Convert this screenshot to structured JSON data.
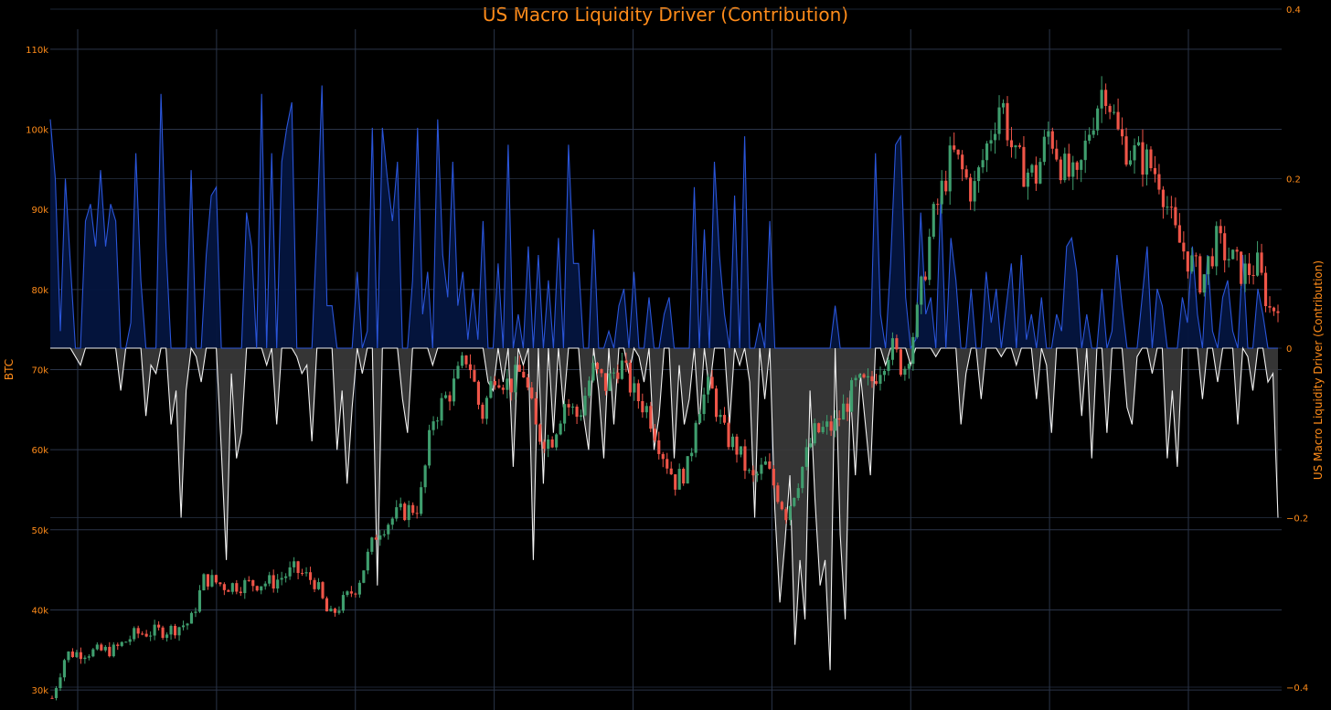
{
  "colors": {
    "background": "#000000",
    "accent": "#ff8c1a",
    "grid": "#2a3448",
    "positive_line": "#2a55d9",
    "positive_fill": "#04153f",
    "negative_line": "#f2f2f2",
    "negative_fill": "#3b3b3b",
    "candle_up": "#3f9e6e",
    "candle_down": "#ef5548"
  },
  "chart_data": {
    "type": "line",
    "title": "US Macro Liquidity Driver (Contribution)",
    "y_left": {
      "label": "BTC",
      "range": [
        27500,
        112500
      ],
      "ticks": [
        30000,
        40000,
        50000,
        60000,
        70000,
        80000,
        90000,
        100000,
        110000
      ],
      "tick_labels": [
        "30k",
        "40k",
        "50k",
        "60k",
        "70k",
        "80k",
        "90k",
        "100k",
        "110k"
      ]
    },
    "y_right": {
      "label": "US Macro Liquidity Driver (Contribution)",
      "range": [
        -0.4,
        0.4
      ],
      "ticks": [
        -0.4,
        -0.2,
        0,
        0.2,
        0.4
      ],
      "tick_labels": [
        "−0.4",
        "−0.2",
        "0",
        "0.2",
        "0.4"
      ]
    },
    "x_grid_count": 9,
    "grid": true,
    "legend": "none",
    "btc_keypoints": [
      [
        0,
        29000
      ],
      [
        2,
        34500
      ],
      [
        9,
        35000
      ],
      [
        12,
        37000
      ],
      [
        17,
        37500
      ],
      [
        20,
        38500
      ],
      [
        22,
        44000
      ],
      [
        25,
        43000
      ],
      [
        32,
        43500
      ],
      [
        35,
        45000
      ],
      [
        38,
        43500
      ],
      [
        40,
        39000
      ],
      [
        44,
        43000
      ],
      [
        47,
        50000
      ],
      [
        50,
        52000
      ],
      [
        53,
        53000
      ],
      [
        55,
        64000
      ],
      [
        58,
        68000
      ],
      [
        60,
        72000
      ],
      [
        62,
        64000
      ],
      [
        64,
        70000
      ],
      [
        66,
        68000
      ],
      [
        68,
        70000
      ],
      [
        70,
        62000
      ],
      [
        72,
        61000
      ],
      [
        74,
        66000
      ],
      [
        76,
        64000
      ],
      [
        78,
        70000
      ],
      [
        80,
        68000
      ],
      [
        82,
        71000
      ],
      [
        84,
        67000
      ],
      [
        86,
        65000
      ],
      [
        88,
        60000
      ],
      [
        90,
        56000
      ],
      [
        92,
        58000
      ],
      [
        93,
        65000
      ],
      [
        95,
        68000
      ],
      [
        97,
        62000
      ],
      [
        99,
        60000
      ],
      [
        101,
        56000
      ],
      [
        103,
        58000
      ],
      [
        106,
        52000
      ],
      [
        108,
        57000
      ],
      [
        110,
        62000
      ],
      [
        113,
        63000
      ],
      [
        116,
        68000
      ],
      [
        118,
        68000
      ],
      [
        121,
        73000
      ],
      [
        123,
        70000
      ],
      [
        125,
        77000
      ],
      [
        127,
        88000
      ],
      [
        130,
        97000
      ],
      [
        133,
        92000
      ],
      [
        135,
        98000
      ],
      [
        137,
        104000
      ],
      [
        139,
        96000
      ],
      [
        142,
        94000
      ],
      [
        144,
        100000
      ],
      [
        146,
        95000
      ],
      [
        148,
        93000
      ],
      [
        150,
        101000
      ],
      [
        152,
        106000
      ],
      [
        154,
        99000
      ],
      [
        156,
        97000
      ],
      [
        158,
        96000
      ],
      [
        160,
        94000
      ],
      [
        162,
        87000
      ],
      [
        164,
        84000
      ],
      [
        166,
        81000
      ],
      [
        168,
        86000
      ],
      [
        170,
        84000
      ],
      [
        172,
        82000
      ],
      [
        174,
        83000
      ],
      [
        176,
        77000
      ],
      [
        177,
        79000
      ]
    ],
    "macro_series": [
      0.27,
      0.2,
      0.02,
      0.2,
      0.1,
      -0.01,
      -0.02,
      0.15,
      0.17,
      0.12,
      0.21,
      0.12,
      0.17,
      0.15,
      -0.05,
      0.0,
      0.03,
      0.23,
      0.08,
      -0.08,
      -0.02,
      -0.03,
      0.3,
      0.12,
      -0.09,
      -0.05,
      -0.2,
      -0.05,
      0.21,
      -0.01,
      -0.04,
      0.11,
      0.18,
      0.19,
      -0.12,
      -0.25,
      -0.03,
      -0.13,
      -0.1,
      0.16,
      0.12,
      0.0,
      0.3,
      -0.02,
      0.23,
      -0.09,
      0.22,
      0.26,
      0.29,
      -0.01,
      -0.03,
      -0.02,
      -0.11,
      0.14,
      0.31,
      0.05,
      0.05,
      -0.12,
      -0.05,
      -0.16,
      -0.07,
      0.09,
      -0.03,
      0.02,
      0.26,
      -0.28,
      0.26,
      0.2,
      0.15,
      0.22,
      -0.06,
      -0.1,
      0.08,
      0.26,
      0.04,
      0.09,
      -0.02,
      0.27,
      0.11,
      0.06,
      0.22,
      0.05,
      0.09,
      0.01,
      0.07,
      0.01,
      0.15,
      -0.04,
      -0.05,
      0.1,
      -0.04,
      0.24,
      -0.14,
      0.04,
      -0.02,
      0.12,
      -0.25,
      0.11,
      -0.16,
      0.08,
      -0.1,
      0.13,
      -0.07,
      0.24,
      0.1,
      0.1,
      -0.08,
      -0.12,
      0.14,
      -0.05,
      -0.13,
      0.02,
      -0.09,
      0.05,
      0.07,
      -0.03,
      0.09,
      -0.01,
      -0.04,
      0.06,
      -0.12,
      -0.08,
      0.04,
      0.06,
      -0.13,
      -0.02,
      -0.09,
      -0.06,
      0.19,
      -0.09,
      0.14,
      -0.05,
      0.22,
      0.11,
      0.04,
      -0.09,
      0.18,
      -0.02,
      0.25,
      -0.04,
      -0.2,
      0.03,
      -0.06,
      0.15,
      -0.19,
      -0.3,
      -0.23,
      -0.15,
      -0.35,
      -0.25,
      -0.32,
      -0.05,
      -0.18,
      -0.28,
      -0.25,
      -0.38,
      0.05,
      -0.22,
      -0.32,
      -0.05,
      -0.15,
      -0.03,
      -0.09,
      -0.15,
      0.23,
      0.04,
      -0.02,
      0.1,
      0.24,
      0.25,
      0.06,
      -0.02,
      0.01,
      0.16,
      0.04,
      0.06,
      -0.01,
      0.18,
      0.0,
      0.13,
      0.08,
      -0.09,
      -0.03,
      0.07,
      0.0,
      -0.06,
      0.09,
      0.03,
      0.07,
      -0.01,
      0.05,
      0.1,
      -0.02,
      0.11,
      0.01,
      0.04,
      -0.06,
      0.06,
      -0.02,
      -0.1,
      0.04,
      0.02,
      0.12,
      0.13,
      0.09,
      -0.08,
      0.04,
      -0.13,
      0.0,
      0.07,
      -0.1,
      0.02,
      0.11,
      0.05,
      -0.07,
      -0.09,
      -0.01,
      0.06,
      0.12,
      -0.03,
      0.07,
      0.05,
      -0.13,
      -0.05,
      -0.14,
      0.06,
      0.03,
      0.12,
      0.04,
      -0.06,
      0.11,
      0.02,
      -0.04,
      0.06,
      0.08,
      0.02,
      -0.09,
      0.11,
      -0.01,
      -0.05,
      0.07,
      0.04,
      -0.04,
      -0.03,
      -0.2
    ]
  }
}
